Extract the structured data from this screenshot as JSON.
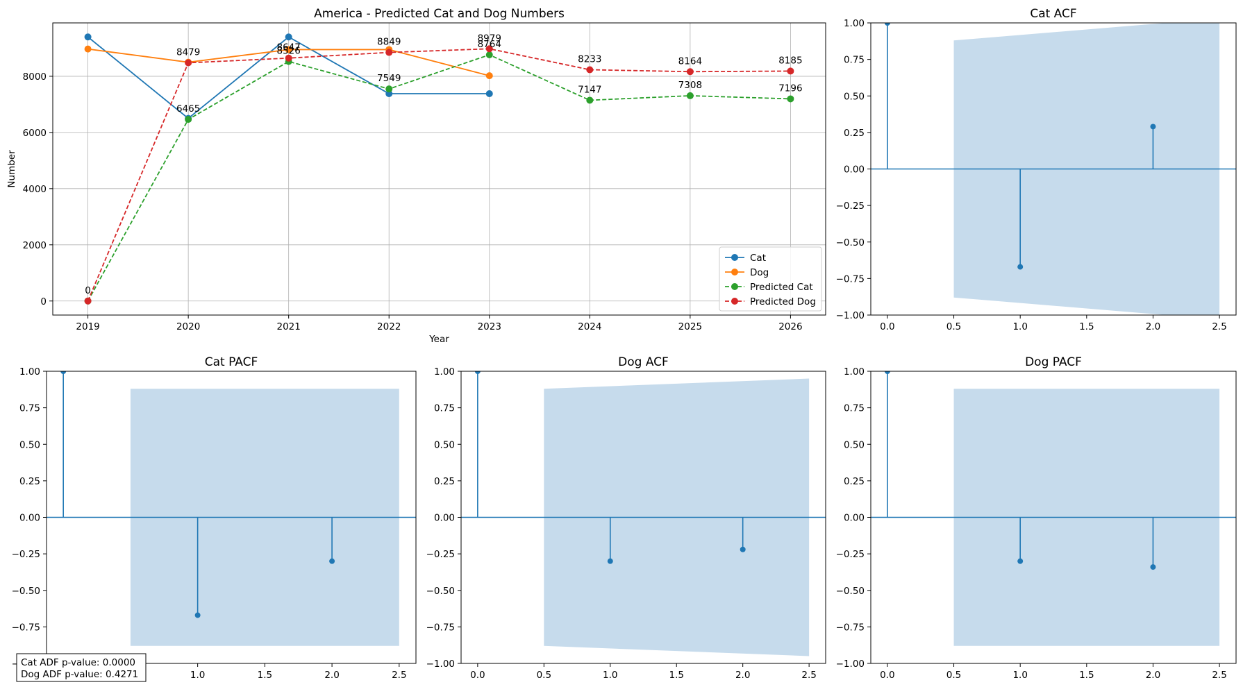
{
  "chart_data": [
    {
      "type": "line",
      "title": "America - Predicted Cat and Dog Numbers",
      "xlabel": "Year",
      "ylabel": "Number",
      "categories": [
        "2019",
        "2020",
        "2021",
        "2022",
        "2023",
        "2024",
        "2025",
        "2026"
      ],
      "xlim": [
        2018.65,
        2026.35
      ],
      "ylim": [
        -500,
        9900
      ],
      "yticks": [
        "0",
        "2000",
        "4000",
        "6000",
        "8000"
      ],
      "grid": true,
      "legend": "lower-right",
      "series": [
        {
          "name": "Cat",
          "color": "#1f77b4",
          "dash": "solid",
          "x": [
            2019,
            2020,
            2021,
            2022,
            2023
          ],
          "values": [
            9400,
            6500,
            9400,
            7380,
            7380
          ]
        },
        {
          "name": "Dog",
          "color": "#ff7f0e",
          "dash": "solid",
          "x": [
            2019,
            2020,
            2021,
            2022,
            2023
          ],
          "values": [
            8970,
            8500,
            8950,
            8950,
            8020
          ]
        },
        {
          "name": "Predicted Cat",
          "color": "#2ca02c",
          "dash": "dashed",
          "x": [
            2019,
            2020,
            2021,
            2022,
            2023,
            2024,
            2025,
            2026
          ],
          "values": [
            0,
            6465,
            8526,
            7549,
            8764,
            7147,
            7308,
            7196
          ]
        },
        {
          "name": "Predicted Dog",
          "color": "#d62728",
          "dash": "dashed",
          "x": [
            2019,
            2020,
            2021,
            2022,
            2023,
            2024,
            2025,
            2026
          ],
          "values": [
            0,
            8479,
            8647,
            8849,
            8979,
            8233,
            8164,
            8185
          ]
        }
      ],
      "annotations": [
        {
          "x": 2019,
          "y": 0,
          "text": "0"
        },
        {
          "x": 2020,
          "y": 6465,
          "text": "6465"
        },
        {
          "x": 2021,
          "y": 8526,
          "text": "8526"
        },
        {
          "x": 2022,
          "y": 7549,
          "text": "7549"
        },
        {
          "x": 2023,
          "y": 8764,
          "text": "8764"
        },
        {
          "x": 2024,
          "y": 7147,
          "text": "7147"
        },
        {
          "x": 2025,
          "y": 7308,
          "text": "7308"
        },
        {
          "x": 2026,
          "y": 7196,
          "text": "7196"
        },
        {
          "x": 2020,
          "y": 8479,
          "text": "8479"
        },
        {
          "x": 2021,
          "y": 8647,
          "text": "8647"
        },
        {
          "x": 2022,
          "y": 8849,
          "text": "8849"
        },
        {
          "x": 2023,
          "y": 8979,
          "text": "8979"
        },
        {
          "x": 2024,
          "y": 8233,
          "text": "8233"
        },
        {
          "x": 2025,
          "y": 8164,
          "text": "8164"
        },
        {
          "x": 2026,
          "y": 8185,
          "text": "8185"
        }
      ]
    },
    {
      "type": "stem",
      "title": "Cat ACF",
      "xlim": [
        -0.125,
        2.625
      ],
      "ylim": [
        -1.0,
        1.0
      ],
      "xticks": [
        "0.0",
        "0.5",
        "1.0",
        "1.5",
        "2.0",
        "2.5"
      ],
      "yticks": [
        "1.00",
        "0.75",
        "0.50",
        "0.25",
        "0.00",
        "−0.25",
        "−0.50",
        "−0.75",
        "−1.00"
      ],
      "lags": [
        0,
        1,
        2
      ],
      "values": [
        1.0,
        -0.67,
        0.29
      ],
      "confidence": {
        "x": [
          0.5,
          2.5
        ],
        "upper": [
          0.88,
          1.03
        ],
        "lower": [
          -0.88,
          -1.03
        ]
      }
    },
    {
      "type": "stem",
      "title": "Cat PACF",
      "xlim": [
        -0.125,
        2.625
      ],
      "ylim": [
        -1.0,
        1.0
      ],
      "xticks": [
        "0.0",
        "0.5",
        "1.0",
        "1.5",
        "2.0",
        "2.5"
      ],
      "yticks": [
        "1.00",
        "0.75",
        "0.50",
        "0.25",
        "0.00",
        "−0.25",
        "−0.50",
        "−0.75",
        "−1.00"
      ],
      "lags": [
        0,
        1,
        2
      ],
      "values": [
        1.0,
        -0.67,
        -0.3
      ],
      "confidence": {
        "x": [
          0.5,
          2.5
        ],
        "upper": [
          0.88,
          0.88
        ],
        "lower": [
          -0.88,
          -0.88
        ]
      }
    },
    {
      "type": "stem",
      "title": "Dog ACF",
      "xlim": [
        -0.125,
        2.625
      ],
      "ylim": [
        -1.0,
        1.0
      ],
      "xticks": [
        "0.0",
        "0.5",
        "1.0",
        "1.5",
        "2.0",
        "2.5"
      ],
      "yticks": [
        "1.00",
        "0.75",
        "0.50",
        "0.25",
        "0.00",
        "−0.25",
        "−0.50",
        "−0.75",
        "−1.00"
      ],
      "lags": [
        0,
        1,
        2
      ],
      "values": [
        1.0,
        -0.3,
        -0.22
      ],
      "confidence": {
        "x": [
          0.5,
          2.5
        ],
        "upper": [
          0.88,
          0.95
        ],
        "lower": [
          -0.88,
          -0.95
        ]
      }
    },
    {
      "type": "stem",
      "title": "Dog PACF",
      "xlim": [
        -0.125,
        2.625
      ],
      "ylim": [
        -1.0,
        1.0
      ],
      "xticks": [
        "0.0",
        "0.5",
        "1.0",
        "1.5",
        "2.0",
        "2.5"
      ],
      "yticks": [
        "1.00",
        "0.75",
        "0.50",
        "0.25",
        "0.00",
        "−0.25",
        "−0.50",
        "−0.75",
        "−1.00"
      ],
      "lags": [
        0,
        1,
        2
      ],
      "values": [
        1.0,
        -0.3,
        -0.34
      ],
      "confidence": {
        "x": [
          0.5,
          2.5
        ],
        "upper": [
          0.88,
          0.88
        ],
        "lower": [
          -0.88,
          -0.88
        ]
      }
    }
  ],
  "adf": {
    "cat": "Cat ADF p-value: 0.0000",
    "dog": "Dog ADF p-value: 0.4271"
  },
  "colors": {
    "stem": "#1f77b4",
    "confidence_band": "#c6dbec",
    "grid": "#b0b0b0"
  }
}
